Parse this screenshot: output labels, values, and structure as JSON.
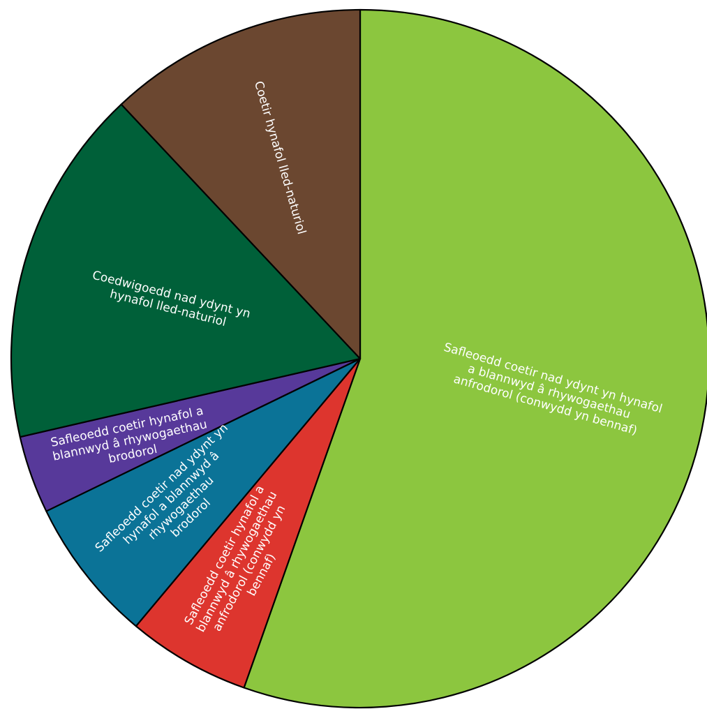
{
  "chart_data": {
    "type": "pie",
    "title": "",
    "start_angle_deg": 0,
    "direction": "clockwise",
    "slices": [
      {
        "label": [
          "Safleoedd coetir nad ydynt yn hynafol",
          "a blannwyd â rhywogaethau",
          "anfrodorol (conwydd yn bennaf)"
        ],
        "value": 55.4,
        "color": "#8cc63f"
      },
      {
        "label": [
          "Safleoedd coetir hynafol a",
          "blannwyd â rhywogaethau",
          "anfrodorol (conwydd yn",
          "bennaf)"
        ],
        "value": 5.7,
        "color": "#dd352e"
      },
      {
        "label": [
          "Safleoedd coetir nad ydynt yn",
          "hynafol a blannwyd â",
          "rhywogaethau",
          "brodorol"
        ],
        "value": 6.7,
        "color": "#0b7397"
      },
      {
        "label": [
          "Safleoedd coetir hynafol a",
          "blannwyd â rhywogaethau",
          "brodorol"
        ],
        "value": 3.6,
        "color": "#57399a"
      },
      {
        "label": [
          "Coedwigoedd nad ydynt yn",
          "hynafol lled-naturiol"
        ],
        "value": 16.6,
        "color": "#006039"
      },
      {
        "label": [
          "Coetir hynafol lled-naturiol"
        ],
        "value": 12.0,
        "color": "#6b4730"
      }
    ]
  }
}
